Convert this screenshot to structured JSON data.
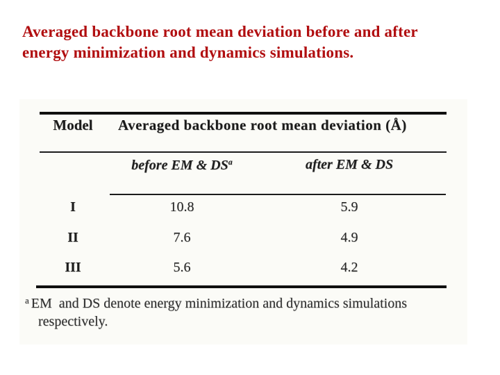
{
  "title": {
    "line1": "Averaged backbone root mean deviation before and after",
    "line2": "energy minimization and dynamics simulations.",
    "color": "#b10e10"
  },
  "table": {
    "model_header": "Model",
    "span_header": "Averaged backbone root mean deviation (Å)",
    "before_header": {
      "text": "before EM & DS",
      "sup": "a"
    },
    "after_header": {
      "text": "after EM & DS"
    },
    "rows": [
      {
        "model": "I",
        "before": "10.8",
        "after": "5.9"
      },
      {
        "model": "II",
        "before": "7.6",
        "after": "4.9"
      },
      {
        "model": "III",
        "before": "5.6",
        "after": "4.2"
      }
    ],
    "footnote": {
      "sup": "a",
      "line1": "EM  and DS denote energy minimization and dynamics simulations",
      "line2": "respectively."
    }
  },
  "chart_data": {
    "type": "table",
    "title": "Averaged backbone root mean deviation (Å)",
    "columns": [
      "Model",
      "before EM & DS (a)",
      "after EM & DS"
    ],
    "rows": [
      [
        "I",
        10.8,
        5.9
      ],
      [
        "II",
        7.6,
        4.9
      ],
      [
        "III",
        5.6,
        4.2
      ]
    ],
    "footnote": "a EM and DS denote energy minimization and dynamics simulations respectively."
  }
}
